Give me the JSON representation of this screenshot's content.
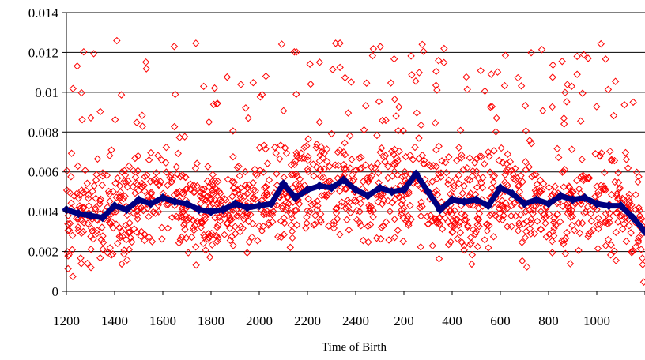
{
  "chart_data": {
    "type": "scatter",
    "title": "",
    "xlabel": "Time of Birth",
    "ylabel": "",
    "ylim": [
      0,
      0.014
    ],
    "y_ticks": [
      "0",
      "0.002",
      "0.004",
      "0.006",
      "0.008",
      "0.01",
      "0.012",
      "0.014"
    ],
    "x_tick_labels": [
      "1200",
      "1400",
      "1600",
      "1800",
      "2000",
      "2200",
      "2400",
      "200",
      "400",
      "600",
      "800",
      "1000"
    ],
    "x_note": "Time of Birth in 24-hour HHMM, running from 1200 through midnight (2400) to about 1159; positions are given as hours elapsed since 12:00",
    "x_range_hours": [
      0,
      24
    ],
    "grid": "horizontal",
    "legend": "none",
    "colors": {
      "scatter": "#ff0000",
      "line": "#000080"
    },
    "series": [
      {
        "kind": "trend-line",
        "x": [
          0,
          0.5,
          1,
          1.5,
          2,
          2.5,
          3,
          3.5,
          4,
          4.5,
          5,
          5.5,
          6,
          6.5,
          7,
          7.5,
          8,
          8.5,
          9,
          9.5,
          10,
          10.5,
          11,
          11.5,
          12,
          12.5,
          13,
          13.5,
          14,
          14.5,
          15,
          15.5,
          16,
          16.5,
          17,
          17.5,
          18,
          18.5,
          19,
          19.5,
          20,
          20.5,
          21,
          21.5,
          22,
          22.5,
          23,
          23.5,
          24
        ],
        "values": [
          0.0041,
          0.0039,
          0.0038,
          0.0037,
          0.0043,
          0.0041,
          0.0046,
          0.0044,
          0.0047,
          0.0045,
          0.0044,
          0.0041,
          0.004,
          0.0041,
          0.0044,
          0.0042,
          0.0043,
          0.0044,
          0.0054,
          0.0047,
          0.0051,
          0.0053,
          0.0052,
          0.0056,
          0.0051,
          0.0048,
          0.0052,
          0.005,
          0.0051,
          0.0059,
          0.005,
          0.0041,
          0.0046,
          0.0045,
          0.0046,
          0.0043,
          0.0052,
          0.0049,
          0.0044,
          0.0046,
          0.0044,
          0.0048,
          0.0046,
          0.0047,
          0.0044,
          0.0043,
          0.0043,
          0.0037,
          0.003
        ]
      },
      {
        "kind": "scatter",
        "count": 1400,
        "min": 0.0004,
        "max": 0.0126,
        "typical_band": [
          0.0015,
          0.008
        ]
      }
    ]
  }
}
